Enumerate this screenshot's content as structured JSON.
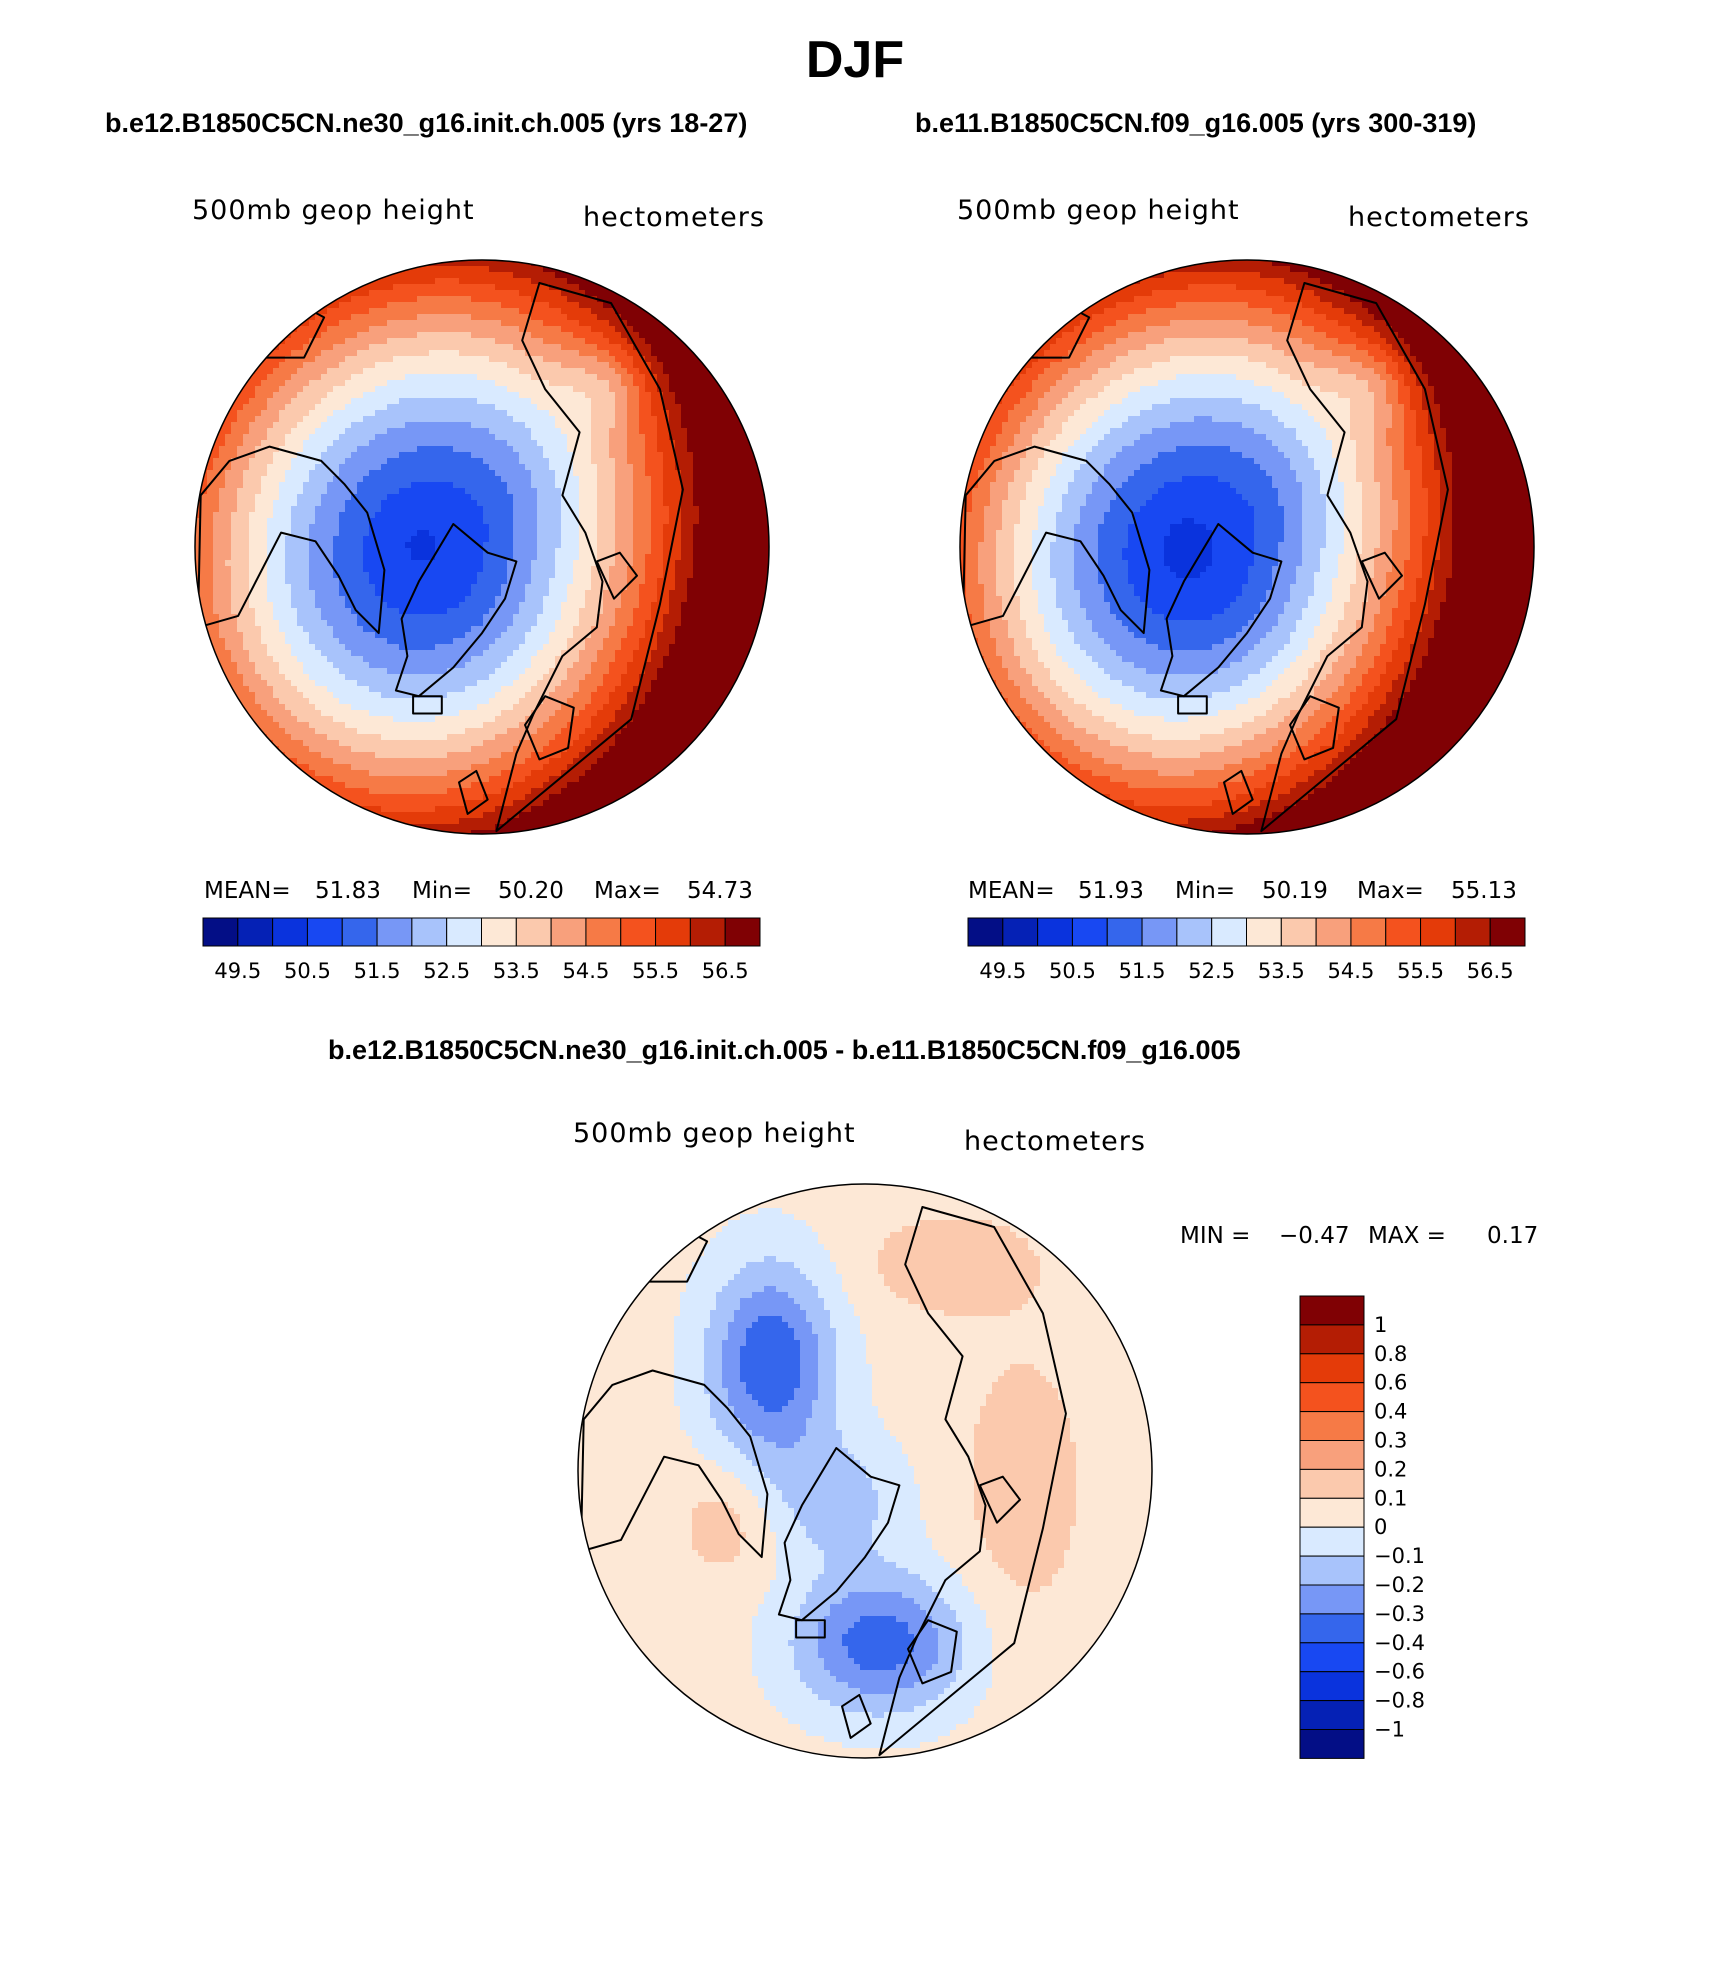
{
  "title": "DJF",
  "colors": {
    "full_field": [
      "#030e86",
      "#0521b5",
      "#0a33dd",
      "#1848f2",
      "#3566ec",
      "#7797f6",
      "#a8c3fb",
      "#d9eaff",
      "#fde8d6",
      "#fbc9ad",
      "#f8a07c",
      "#f67a46",
      "#f4521e",
      "#e43b09",
      "#b41d04",
      "#800104"
    ],
    "difference": [
      "#030e86",
      "#0521b5",
      "#0a33dd",
      "#1848f2",
      "#3566ec",
      "#7797f6",
      "#a8c3fb",
      "#d9eaff",
      "#fde8d6",
      "#fbc9ad",
      "#f8a07c",
      "#f67a46",
      "#f4521e",
      "#e43b09",
      "#b41d04",
      "#800104"
    ],
    "coastline": "#000000"
  },
  "chart_data": [
    {
      "type": "heatmap",
      "projection": "north polar stereographic",
      "panel_title": "b.e12.B1850C5CN.ne30_g16.init.ch.005 (yrs 18-27)",
      "left_label": "500mb geop height",
      "right_label": "hectometers",
      "units": "hectometers",
      "stats": {
        "mean_label": "MEAN=",
        "mean": "51.83",
        "min_label": "Min=",
        "min": "50.20",
        "max_label": "Max=",
        "max": "54.73"
      },
      "field": {
        "pole_value": 50.35,
        "equatorward_gradient": 7.6,
        "wave_amplitude": 0.55
      },
      "colorbar": {
        "orientation": "horizontal",
        "levels": [
          "49.5",
          "50.5",
          "51.5",
          "52.5",
          "53.5",
          "54.5",
          "55.5",
          "56.5"
        ]
      }
    },
    {
      "type": "heatmap",
      "projection": "north polar stereographic",
      "panel_title": "b.e11.B1850C5CN.f09_g16.005 (yrs 300-319)",
      "left_label": "500mb geop height",
      "right_label": "hectometers",
      "units": "hectometers",
      "stats": {
        "mean_label": "MEAN=",
        "mean": "51.93",
        "min_label": "Min=",
        "min": "50.19",
        "max_label": "Max=",
        "max": "55.13"
      },
      "field": {
        "pole_value": 50.25,
        "equatorward_gradient": 8.0,
        "wave_amplitude": 0.6
      },
      "colorbar": {
        "orientation": "horizontal",
        "levels": [
          "49.5",
          "50.5",
          "51.5",
          "52.5",
          "53.5",
          "54.5",
          "55.5",
          "56.5"
        ]
      }
    },
    {
      "type": "heatmap",
      "projection": "north polar stereographic",
      "panel_title": "b.e12.B1850C5CN.ne30_g16.init.ch.005 - b.e11.B1850C5CN.f09_g16.005",
      "left_label": "500mb geop height",
      "right_label": "hectometers",
      "units": "hectometers",
      "stats": {
        "min_label": "MIN =",
        "min": "−0.47",
        "max_label": "MAX =",
        "max": "0.17"
      },
      "colorbar": {
        "orientation": "vertical",
        "levels": [
          "1",
          "0.8",
          "0.6",
          "0.4",
          "0.3",
          "0.2",
          "0.1",
          "0",
          "−0.1",
          "−0.2",
          "−0.3",
          "−0.4",
          "−0.6",
          "−0.8",
          "−1"
        ]
      }
    }
  ]
}
